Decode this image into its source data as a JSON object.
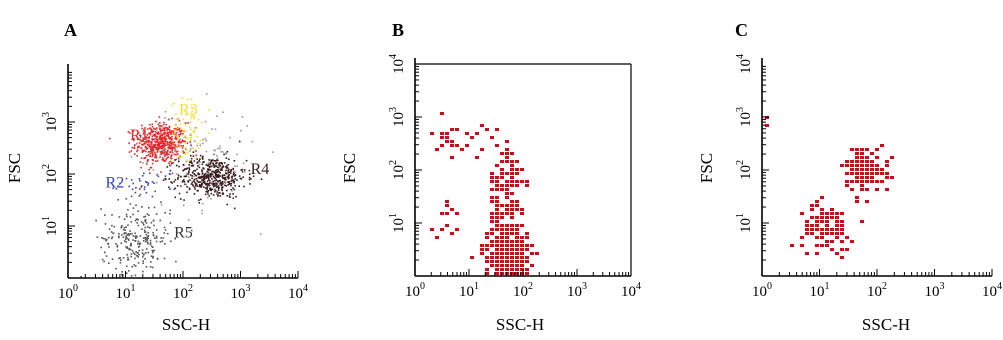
{
  "chart_data": [
    {
      "type": "scatter",
      "panel_label": "A",
      "xlabel": "SSC-H",
      "ylabel": "FSC",
      "x_scale": "log",
      "y_scale": "log",
      "xlim": [
        1,
        10000
      ],
      "ylim": [
        1,
        10000
      ],
      "x_ticks": [
        {
          "value": 1,
          "base": "10",
          "exp": "0"
        },
        {
          "value": 10,
          "base": "10",
          "exp": "1"
        },
        {
          "value": 100,
          "base": "10",
          "exp": "2"
        },
        {
          "value": 1000,
          "base": "10",
          "exp": "3"
        },
        {
          "value": 10000,
          "base": "10",
          "exp": "4"
        }
      ],
      "y_ticks": [
        {
          "value": 10,
          "base": "10",
          "exp": "1"
        },
        {
          "value": 100,
          "base": "10",
          "exp": "2"
        },
        {
          "value": 1000,
          "base": "10",
          "exp": "3"
        }
      ],
      "frame": "left-bottom",
      "clusters": [
        {
          "name": "R1",
          "color": "#e8262b",
          "center": [
            40,
            400
          ],
          "spread": [
            0.22,
            0.2
          ],
          "count": 520
        },
        {
          "name": "R3",
          "color": "#f2e22e",
          "center": [
            110,
            700
          ],
          "spread": [
            0.13,
            0.3
          ],
          "count": 80
        },
        {
          "name": "R2",
          "color": "#2f43c8",
          "center": [
            25,
            70
          ],
          "spread": [
            0.25,
            0.12
          ],
          "count": 35
        },
        {
          "name": "R4",
          "color": "#3a1a1a",
          "center": [
            300,
            90
          ],
          "spread": [
            0.3,
            0.2
          ],
          "count": 480
        },
        {
          "name": "R5",
          "color": "#555555",
          "center": [
            15,
            6
          ],
          "spread": [
            0.3,
            0.35
          ],
          "count": 260
        },
        {
          "name": "background",
          "color": "#9a9a9a",
          "center": [
            200,
            200
          ],
          "spread": [
            0.5,
            0.5
          ],
          "count": 110
        }
      ],
      "region_labels": [
        {
          "text": "R1",
          "color": "#e8262b",
          "x": 12,
          "y": 450
        },
        {
          "text": "R3",
          "color": "#f2e22e",
          "x": 85,
          "y": 1400
        },
        {
          "text": "R2",
          "color": "#2f43c8",
          "x": 4.5,
          "y": 55
        },
        {
          "text": "R4",
          "color": "#3a1a1a",
          "x": 1500,
          "y": 100
        },
        {
          "text": "R5",
          "color": "#333333",
          "x": 70,
          "y": 6
        }
      ]
    },
    {
      "type": "scatter",
      "panel_label": "B",
      "xlabel": "SSC-H",
      "ylabel": "FSC",
      "x_scale": "log",
      "y_scale": "log",
      "xlim": [
        1,
        10000
      ],
      "ylim": [
        1,
        10000
      ],
      "x_ticks": [
        {
          "value": 1,
          "base": "10",
          "exp": "0"
        },
        {
          "value": 10,
          "base": "10",
          "exp": "1"
        },
        {
          "value": 100,
          "base": "10",
          "exp": "2"
        },
        {
          "value": 1000,
          "base": "10",
          "exp": "3"
        },
        {
          "value": 10000,
          "base": "10",
          "exp": "4"
        }
      ],
      "y_ticks": [
        {
          "value": 10,
          "base": "10",
          "exp": "1"
        },
        {
          "value": 100,
          "base": "10",
          "exp": "2"
        },
        {
          "value": 1000,
          "base": "10",
          "exp": "3"
        },
        {
          "value": 10000,
          "base": "10",
          "exp": "4"
        }
      ],
      "frame": "box",
      "point_color": "#c8101a",
      "clusters": [
        {
          "name": "lower",
          "color": "#c8101a",
          "center": [
            45,
            3
          ],
          "spread": [
            0.2,
            0.28
          ],
          "count": 320
        },
        {
          "name": "column",
          "color": "#c8101a",
          "center": [
            45,
            40
          ],
          "spread": [
            0.15,
            0.55
          ],
          "count": 120
        },
        {
          "name": "upper-left",
          "color": "#c8101a",
          "center": [
            6,
            400
          ],
          "spread": [
            0.25,
            0.18
          ],
          "count": 30
        },
        {
          "name": "mid-left",
          "color": "#c8101a",
          "center": [
            4,
            12
          ],
          "spread": [
            0.15,
            0.2
          ],
          "count": 12
        }
      ],
      "region_labels": []
    },
    {
      "type": "scatter",
      "panel_label": "C",
      "xlabel": "SSC-H",
      "ylabel": "FSC",
      "x_scale": "log",
      "y_scale": "log",
      "xlim": [
        1,
        10000
      ],
      "ylim": [
        1,
        10000
      ],
      "x_ticks": [
        {
          "value": 1,
          "base": "10",
          "exp": "0"
        },
        {
          "value": 10,
          "base": "10",
          "exp": "1"
        },
        {
          "value": 100,
          "base": "10",
          "exp": "2"
        },
        {
          "value": 1000,
          "base": "10",
          "exp": "3"
        },
        {
          "value": 10000,
          "base": "10",
          "exp": "4"
        }
      ],
      "y_ticks": [
        {
          "value": 10,
          "base": "10",
          "exp": "1"
        },
        {
          "value": 100,
          "base": "10",
          "exp": "2"
        },
        {
          "value": 1000,
          "base": "10",
          "exp": "3"
        },
        {
          "value": 10000,
          "base": "10",
          "exp": "4"
        }
      ],
      "frame": "left-bottom",
      "point_color": "#c8101a",
      "clusters": [
        {
          "name": "upper",
          "color": "#c8101a",
          "center": [
            60,
            110
          ],
          "spread": [
            0.2,
            0.22
          ],
          "count": 110
        },
        {
          "name": "lower",
          "color": "#c8101a",
          "center": [
            12,
            9
          ],
          "spread": [
            0.22,
            0.22
          ],
          "count": 95
        },
        {
          "name": "edge",
          "color": "#c8101a",
          "center": [
            1.05,
            700
          ],
          "spread": [
            0.02,
            0.15
          ],
          "count": 6
        }
      ],
      "region_labels": []
    }
  ]
}
